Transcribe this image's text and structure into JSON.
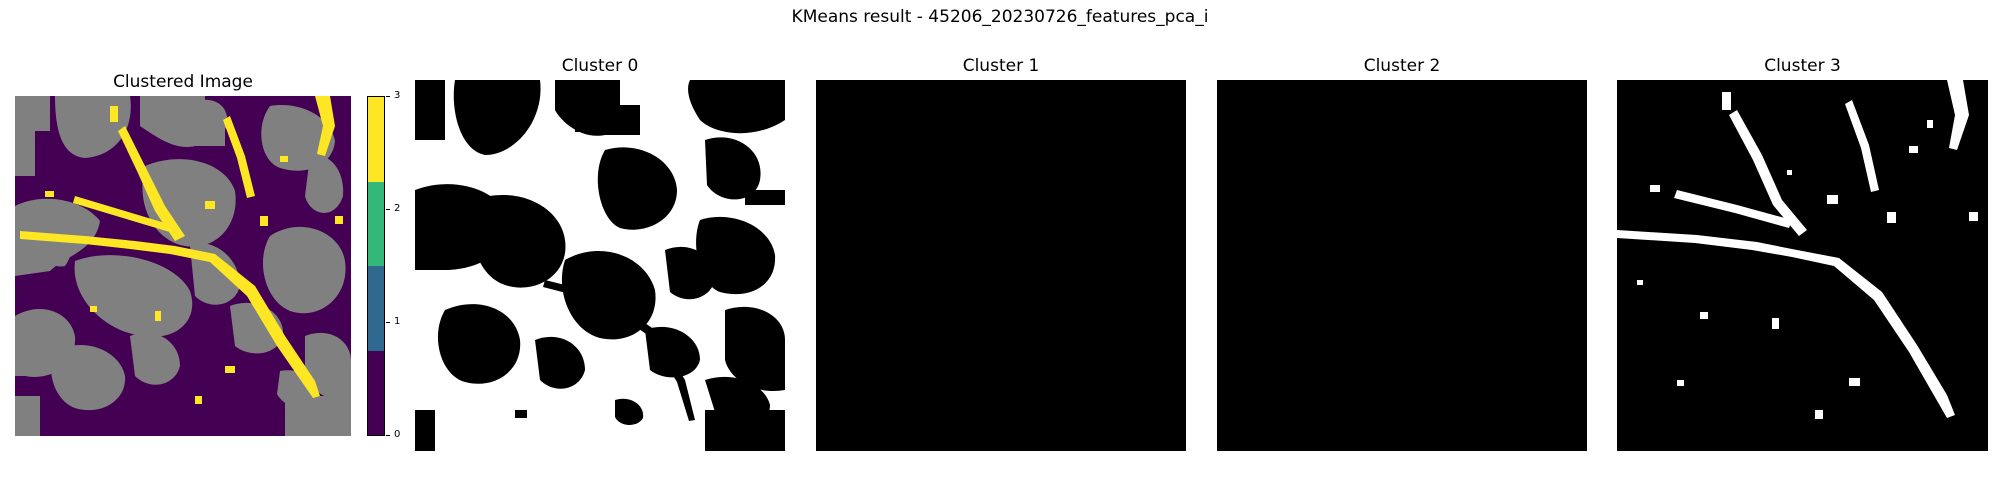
{
  "figure": {
    "suptitle": "KMeans result - 45206_20230726_features_pca_i"
  },
  "panels": [
    {
      "title": "Clustered Image"
    },
    {
      "title": "Cluster 0"
    },
    {
      "title": "Cluster 1"
    },
    {
      "title": "Cluster 2"
    },
    {
      "title": "Cluster 3"
    }
  ],
  "colorbar": {
    "ticks": [
      "0",
      "1",
      "2",
      "3"
    ],
    "colors": [
      "#440154",
      "#31688e",
      "#35b779",
      "#fde725"
    ]
  },
  "colors": {
    "cluster0": "#440154",
    "cluster1": "#31688e",
    "cluster2": "#35b779",
    "cluster3": "#fde725",
    "background_gray": "#808080",
    "mask_on": "#ffffff",
    "mask_off": "#000000"
  }
}
